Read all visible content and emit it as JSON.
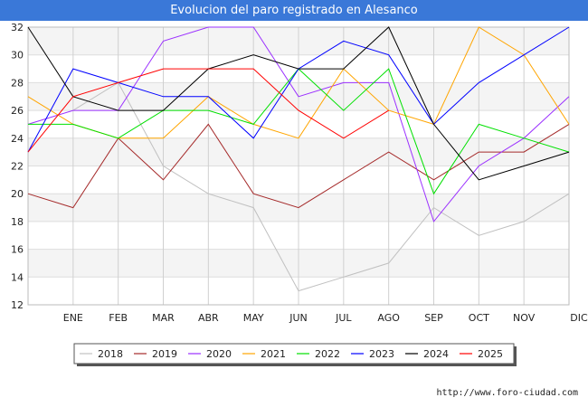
{
  "chart_data": {
    "type": "line",
    "title": "Evolucion del paro registrado en Alesanco",
    "categories": [
      "",
      "ENE",
      "FEB",
      "MAR",
      "ABR",
      "MAY",
      "JUN",
      "JUL",
      "AGO",
      "SEP",
      "OCT",
      "NOV",
      "DIC"
    ],
    "ylim": [
      12,
      32
    ],
    "yticks": [
      12,
      14,
      16,
      18,
      20,
      22,
      24,
      26,
      28,
      30,
      32
    ],
    "grid": true,
    "legend_position": "bottom",
    "series": [
      {
        "name": "2018",
        "color": "#c0c0c0",
        "values": [
          null,
          26,
          28,
          22,
          20,
          19,
          13,
          14,
          15,
          19,
          17,
          18,
          20
        ]
      },
      {
        "name": "2019",
        "color": "#a52a2a",
        "values": [
          20,
          19,
          24,
          21,
          25,
          20,
          19,
          21,
          23,
          21,
          23,
          23,
          25
        ]
      },
      {
        "name": "2020",
        "color": "#9b30ff",
        "values": [
          25,
          26,
          26,
          31,
          32,
          32,
          27,
          28,
          28,
          18,
          22,
          24,
          27
        ]
      },
      {
        "name": "2021",
        "color": "#ffa500",
        "values": [
          27,
          25,
          24,
          24,
          27,
          25,
          24,
          29,
          26,
          25,
          32,
          30,
          25
        ]
      },
      {
        "name": "2022",
        "color": "#00e000",
        "values": [
          25,
          25,
          24,
          26,
          26,
          25,
          29,
          26,
          29,
          20,
          25,
          24,
          23
        ]
      },
      {
        "name": "2023",
        "color": "#0000ff",
        "values": [
          23,
          29,
          28,
          27,
          27,
          24,
          29,
          31,
          30,
          25,
          28,
          30,
          32
        ]
      },
      {
        "name": "2024",
        "color": "#000000",
        "values": [
          32,
          27,
          26,
          26,
          29,
          30,
          29,
          29,
          32,
          25,
          21,
          22,
          23
        ]
      },
      {
        "name": "2025",
        "color": "#ff0000",
        "values": [
          23,
          27,
          28,
          29,
          29,
          29,
          26,
          24,
          26,
          null,
          null,
          null,
          null
        ]
      }
    ]
  },
  "footer_url": "http://www.foro-ciudad.com"
}
